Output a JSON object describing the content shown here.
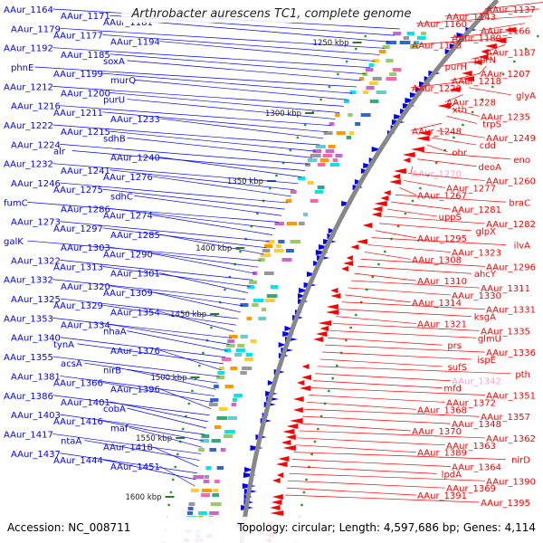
{
  "title": "Arthrobacter aurescens TC1, complete genome",
  "accession": "Accession: NC_008711",
  "topology": "Topology: circular; Length: 4,597,686 bp; Genes: 4,114",
  "colors": {
    "forward_strand": "#0000ff",
    "reverse_strand": "#ff0000",
    "backbone": "#888888",
    "tick": "#2a7a2a"
  },
  "kbp_ticks": [
    {
      "label": "1250 kbp"
    },
    {
      "label": "1300 kbp"
    },
    {
      "label": "1350 kbp"
    },
    {
      "label": "1400 kbp"
    },
    {
      "label": "1450 kbp"
    },
    {
      "label": "1500 kbp"
    },
    {
      "label": "1550 kbp"
    },
    {
      "label": "1600 kbp"
    }
  ],
  "left_labels": [
    "AAur_1164",
    "AAur_1171",
    "AAur_1181",
    "AAur_1179",
    "AAur_1177",
    "AAur_1194",
    "AAur_1192",
    "AAur_1185",
    "soxA",
    "phnE",
    "AAur_1199",
    "murQ",
    "AAur_1212",
    "AAur_1200",
    "purU",
    "AAur_1216",
    "AAur_1211",
    "AAur_1233",
    "AAur_1222",
    "AAur_1215",
    "sdhB",
    "AAur_1224",
    "alr",
    "AAur_1240",
    "AAur_1232",
    "AAur_1241",
    "AAur_1276",
    "AAur_1246",
    "AAur_1275",
    "sdhC",
    "fumC",
    "AAur_1286",
    "AAur_1274",
    "AAur_1273",
    "AAur_1297",
    "AAur_1285",
    "galK",
    "AAur_1303",
    "AAur_1290",
    "AAur_1322",
    "AAur_1313",
    "AAur_1301",
    "AAur_1332",
    "AAur_1320",
    "AAur_1309",
    "AAur_1325",
    "AAur_1329",
    "AAur_1354",
    "AAur_1353",
    "AAur_1334",
    "nhaA",
    "AAur_1340",
    "tynA",
    "AAur_1376",
    "AAur_1355",
    "acsA",
    "nirB",
    "AAur_1381",
    "AAur_1366",
    "AAur_1396",
    "AAur_1386",
    "AAur_1401",
    "cobA",
    "AAur_1403",
    "AAur_1416",
    "maf",
    "AAur_1417",
    "ntaA",
    "AAur_1418",
    "AAur_1437",
    "AAur_1444",
    "AAur_1451"
  ],
  "right_labels": [
    "AAur_1137",
    "AAur_1143",
    "AAur_1160",
    "AAur_1166",
    "AAur_1180",
    "AAur_1173",
    "AAur_1187",
    "purN",
    "purH",
    "AAur_1207",
    "AAur_1218",
    "AAur_1220",
    "glyA",
    "AAur_1228",
    "xth",
    "AAur_1235",
    "trpS",
    "AAur_1248",
    "AAur_1249",
    "cdd",
    "ohr",
    "eno",
    "deoA",
    "AAur_1270",
    "AAur_1260",
    "AAur_1277",
    "AAur_1267",
    "braC",
    "AAur_1281",
    "uppS",
    "AAur_1282",
    "glpX",
    "AAur_1295",
    "ilvA",
    "AAur_1323",
    "AAur_1308",
    "AAur_1296",
    "ahcY",
    "AAur_1310",
    "AAur_1311",
    "AAur_1330",
    "AAur_1314",
    "AAur_1331",
    "ksgA",
    "AAur_1321",
    "AAur_1335",
    "glmU",
    "prs",
    "AAur_1336",
    "ispE",
    "sufS",
    "pth",
    "AAur_1342",
    "mfd",
    "AAur_1351",
    "AAur_1372",
    "AAur_1368",
    "AAur_1357",
    "AAur_1348",
    "AAur_1370",
    "AAur_1362",
    "AAur_1363",
    "AAur_1389",
    "nirD",
    "AAur_1364",
    "lpdA",
    "AAur_1390",
    "AAur_1369",
    "AAur_1391",
    "AAur_1395"
  ]
}
